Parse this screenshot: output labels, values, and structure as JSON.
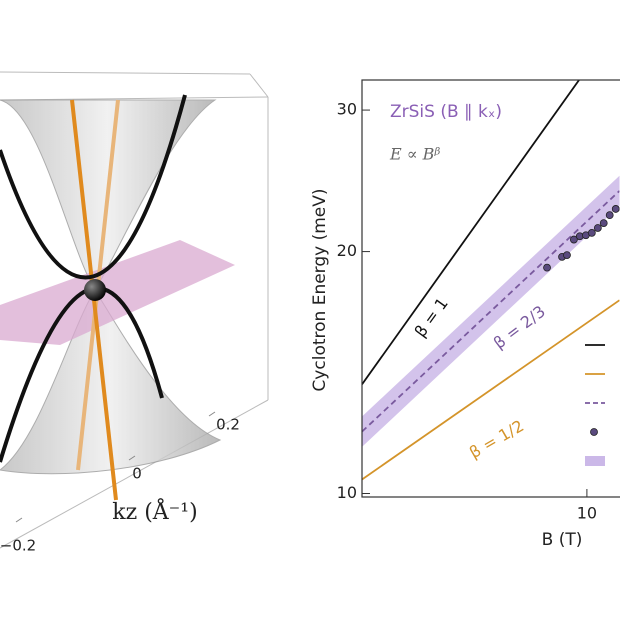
{
  "left_panel": {
    "axis_label": "kz (Å⁻¹)",
    "tick_labels": [
      "0.2",
      "0",
      "−0.2"
    ]
  },
  "chart_data": {
    "type": "line",
    "log_x": true,
    "log_y": true,
    "title": "ZrSiS (B ∥ kₓ)",
    "subtitle": "E ∝ Bᵝ",
    "x_label": "B (T)",
    "y_label": "Cyclotron Energy (meV)",
    "xlim": [
      4.05,
      11.4
    ],
    "ylim": [
      9.9,
      32.7
    ],
    "xticks": [
      10
    ],
    "yticks": [
      10,
      20,
      30
    ],
    "legend": "right",
    "band": {
      "color": "#cbb8e8",
      "x": [
        4.05,
        11.4
      ],
      "lower": [
        11.43,
        22.8
      ],
      "upper": [
        12.47,
        24.85
      ]
    },
    "series": [
      {
        "label": "β = 1",
        "color": "#111111",
        "style": "solid",
        "x": [
          4.05,
          9.69
        ],
        "values": [
          13.67,
          32.7
        ]
      },
      {
        "label": "β = 1/2",
        "color": "#d4942a",
        "style": "solid",
        "x": [
          4.05,
          11.4
        ],
        "values": [
          10.41,
          17.4
        ]
      },
      {
        "label": "β = 2/3",
        "color": "#7a5a9e",
        "style": "dashed",
        "x": [
          4.05,
          11.4
        ],
        "values": [
          11.94,
          23.8
        ]
      },
      {
        "color": "#5a4a7e",
        "style": "points",
        "x": [
          8.52,
          9.05,
          9.23,
          9.49,
          9.72,
          9.96,
          10.2,
          10.45,
          10.7,
          10.96,
          11.23
        ],
        "values": [
          19.1,
          19.7,
          19.8,
          20.7,
          20.9,
          20.96,
          21.1,
          21.4,
          21.7,
          22.2,
          22.6
        ]
      }
    ]
  }
}
